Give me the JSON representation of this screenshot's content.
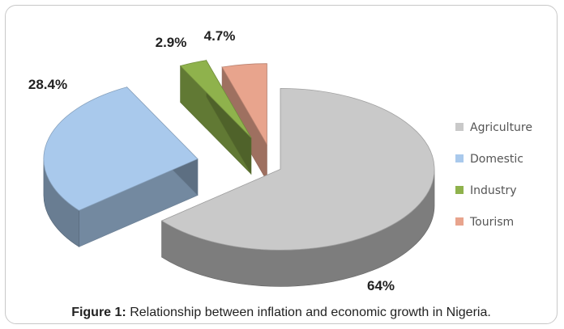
{
  "chart_data": {
    "type": "pie",
    "categories": [
      "Agriculture",
      "Domestic",
      "Industry",
      "Tourism"
    ],
    "values": [
      64,
      28.4,
      2.9,
      4.7
    ],
    "value_labels": [
      "64%",
      "28.4%",
      "2.9%",
      "4.7%"
    ],
    "colors": [
      "#c9c9c9",
      "#a9c9ec",
      "#8fb24c",
      "#e8a48d"
    ],
    "style": "3d-exploded",
    "legend_position": "right"
  },
  "caption": {
    "label": "Figure 1:",
    "text": "Relationship between inflation and economic growth in Nigeria."
  }
}
